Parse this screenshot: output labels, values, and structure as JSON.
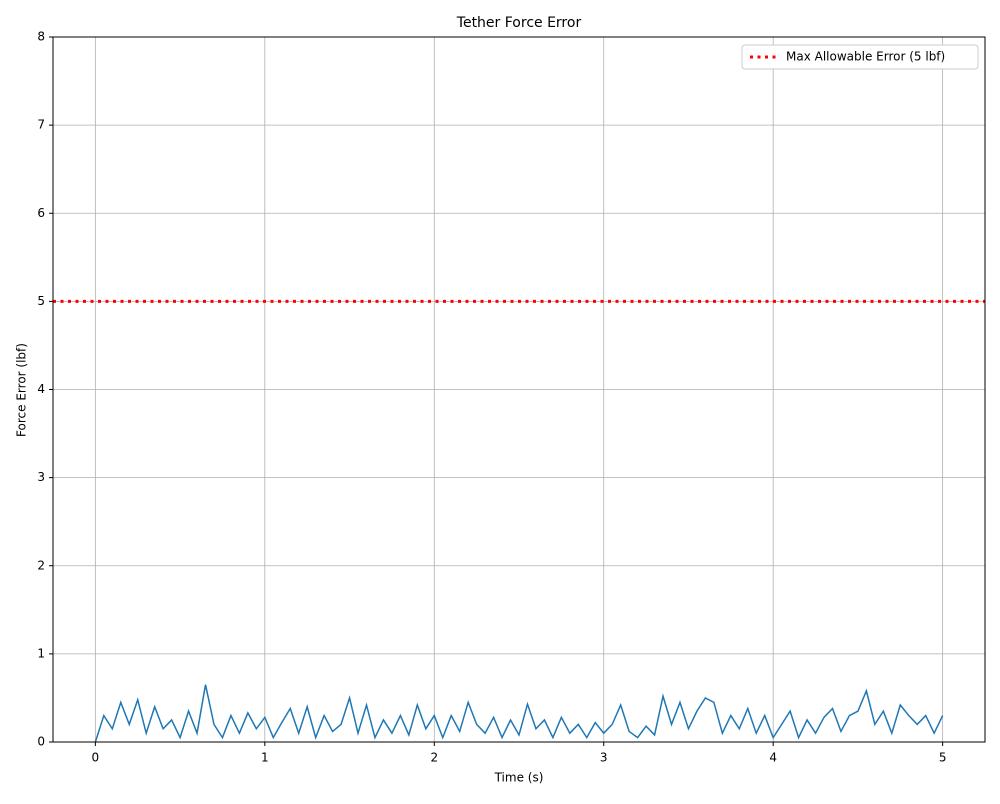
{
  "chart_data": {
    "type": "line",
    "title": "Tether Force Error",
    "x_label": "Time (s)",
    "y_label": "Force Error (lbf)",
    "x": [
      0,
      0.05,
      0.1,
      0.15,
      0.2,
      0.25,
      0.3,
      0.35,
      0.4,
      0.45,
      0.5,
      0.55,
      0.6,
      0.65,
      0.7,
      0.75,
      0.8,
      0.85,
      0.9,
      0.95,
      1,
      1.05,
      1.1,
      1.15,
      1.2,
      1.25,
      1.3,
      1.35,
      1.4,
      1.45,
      1.5,
      1.55,
      1.6,
      1.65,
      1.7,
      1.75,
      1.8,
      1.85,
      1.9,
      1.95,
      2,
      2.05,
      2.1,
      2.15,
      2.2,
      2.25,
      2.3,
      2.35,
      2.4,
      2.45,
      2.5,
      2.55,
      2.6,
      2.65,
      2.7,
      2.75,
      2.8,
      2.85,
      2.9,
      2.95,
      3,
      3.05,
      3.1,
      3.15,
      3.2,
      3.25,
      3.3,
      3.35,
      3.4,
      3.45,
      3.5,
      3.55,
      3.6,
      3.65,
      3.7,
      3.75,
      3.8,
      3.85,
      3.9,
      3.95,
      4,
      4.05,
      4.1,
      4.15,
      4.2,
      4.25,
      4.3,
      4.35,
      4.4,
      4.45,
      4.5,
      4.55,
      4.6,
      4.65,
      4.7,
      4.75,
      4.8,
      4.85,
      4.9,
      4.95,
      5
    ],
    "series": [
      {
        "color": "#1f77b4",
        "values": [
          0,
          0.3,
          0.15,
          0.45,
          0.2,
          0.48,
          0.1,
          0.4,
          0.15,
          0.25,
          0.05,
          0.35,
          0.1,
          0.65,
          0.2,
          0.05,
          0.3,
          0.1,
          0.33,
          0.15,
          0.28,
          0.05,
          0.22,
          0.38,
          0.1,
          0.4,
          0.05,
          0.3,
          0.12,
          0.2,
          0.5,
          0.1,
          0.42,
          0.05,
          0.25,
          0.1,
          0.3,
          0.08,
          0.42,
          0.15,
          0.3,
          0.05,
          0.3,
          0.12,
          0.45,
          0.2,
          0.1,
          0.28,
          0.05,
          0.25,
          0.08,
          0.43,
          0.15,
          0.25,
          0.05,
          0.28,
          0.1,
          0.2,
          0.05,
          0.22,
          0.1,
          0.2,
          0.42,
          0.12,
          0.05,
          0.18,
          0.08,
          0.52,
          0.2,
          0.45,
          0.15,
          0.35,
          0.5,
          0.45,
          0.1,
          0.3,
          0.15,
          0.38,
          0.1,
          0.3,
          0.05,
          0.2,
          0.35,
          0.05,
          0.25,
          0.1,
          0.28,
          0.38,
          0.12,
          0.3,
          0.35,
          0.58,
          0.2,
          0.35,
          0.1,
          0.42,
          0.3,
          0.2,
          0.3,
          0.1,
          0.3
        ]
      }
    ],
    "hlines": [
      {
        "name": "Max Allowable Error (5 lbf)",
        "value": 5,
        "color": "red"
      }
    ],
    "xlim": [
      -0.25,
      5.25
    ],
    "xticks": [
      0,
      1,
      2,
      3,
      4,
      5
    ],
    "ylim": [
      0,
      8
    ],
    "yticks": [
      0,
      1,
      2,
      3,
      4,
      5,
      6,
      7,
      8
    ],
    "grid": true,
    "legend": "upper right"
  }
}
